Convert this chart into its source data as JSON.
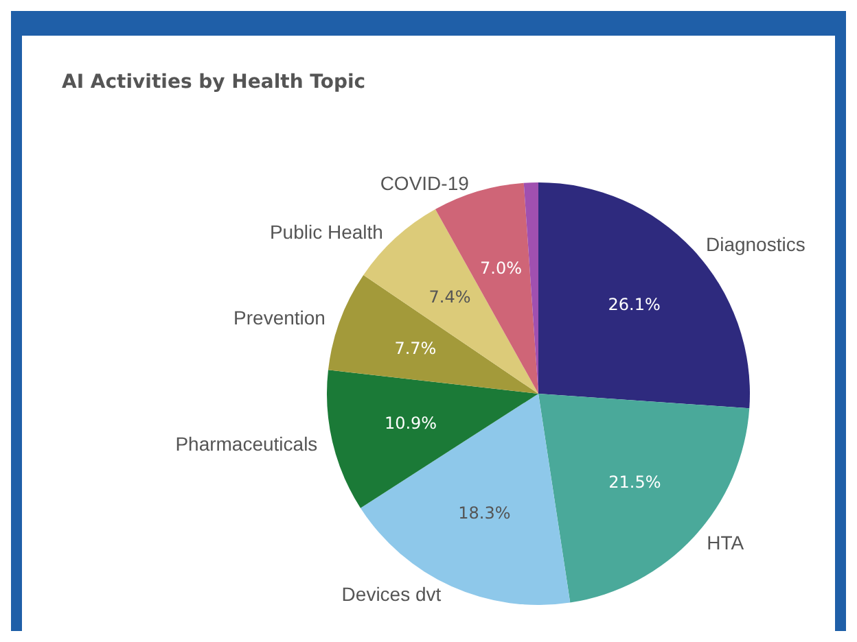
{
  "chart_data": {
    "type": "pie",
    "title": "AI Activities by Health Topic",
    "categories": [
      "Diagnostics",
      "HTA",
      "Devices dvt",
      "Pharmaceuticals",
      "Prevention",
      "Public Health",
      "COVID-19",
      null
    ],
    "values": [
      26.1,
      21.5,
      18.3,
      10.9,
      7.7,
      7.4,
      7.0,
      1.1
    ],
    "value_labels": [
      "26.1%",
      "21.5%",
      "18.3%",
      "10.9%",
      "7.7%",
      "7.4%",
      "7.0%",
      null
    ],
    "colors": [
      "#2e2a7e",
      "#4aa99a",
      "#8ec8ea",
      "#1b7a37",
      "#a39a3a",
      "#dccb79",
      "#cf6577",
      "#a050b0"
    ],
    "legend": false
  }
}
